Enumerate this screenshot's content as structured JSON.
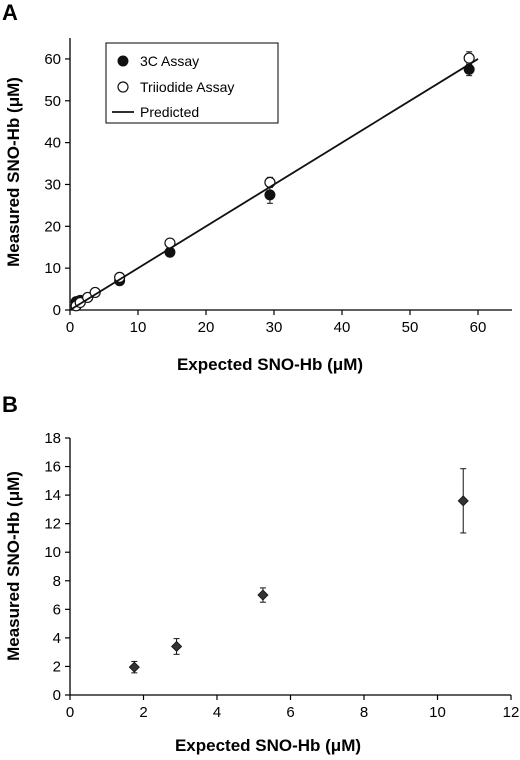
{
  "chart_data": [
    {
      "panel": "A",
      "type": "scatter",
      "xlabel": "Expected SNO-Hb (μM)",
      "ylabel": "Measured SNO-Hb (μM)",
      "xlim": [
        0,
        65
      ],
      "ylim": [
        0,
        65
      ],
      "xticks": [
        "0",
        "10",
        "20",
        "30",
        "40",
        "50",
        "60"
      ],
      "yticks": [
        "0",
        "10",
        "20",
        "30",
        "40",
        "50",
        "60"
      ],
      "legend_position": "top-left",
      "series": [
        {
          "name": "3C Assay",
          "marker": "filled-circle",
          "x": [
            0.9,
            1.5,
            7.3,
            14.7,
            29.4,
            58.7
          ],
          "y": [
            2.0,
            2.3,
            7.0,
            13.8,
            27.5,
            57.5
          ],
          "err": [
            0.4,
            0.4,
            0.6,
            0.8,
            2.0,
            1.5
          ]
        },
        {
          "name": "Triiodide Assay",
          "marker": "open-circle",
          "x": [
            0.9,
            1.5,
            2.6,
            3.7,
            7.3,
            14.7,
            29.4,
            58.7
          ],
          "y": [
            1.0,
            1.8,
            3.0,
            4.2,
            7.8,
            16.0,
            30.5,
            60.2
          ],
          "err": [
            0.3,
            0.3,
            0.4,
            0.4,
            0.6,
            0.8,
            1.2,
            1.5
          ]
        },
        {
          "name": "Predicted",
          "marker": "line",
          "x": [
            0,
            60
          ],
          "y": [
            0,
            60
          ]
        }
      ]
    },
    {
      "panel": "B",
      "type": "scatter",
      "xlabel": "Expected SNO-Hb (μM)",
      "ylabel": "Measured SNO-Hb (μM)",
      "xlim": [
        0,
        12
      ],
      "ylim": [
        0,
        18
      ],
      "xticks": [
        "0",
        "2",
        "4",
        "6",
        "8",
        "10",
        "12"
      ],
      "yticks": [
        "0",
        "2",
        "4",
        "6",
        "8",
        "10",
        "12",
        "14",
        "16",
        "18"
      ],
      "series": [
        {
          "marker": "filled-diamond",
          "x": [
            1.75,
            2.9,
            5.25,
            10.7
          ],
          "y": [
            1.95,
            3.4,
            7.0,
            13.6
          ],
          "err": [
            0.4,
            0.55,
            0.5,
            2.25
          ]
        }
      ]
    }
  ]
}
